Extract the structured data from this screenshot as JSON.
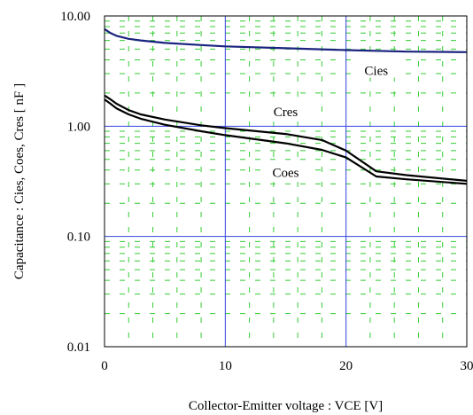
{
  "chart_data": {
    "type": "line",
    "xlabel": "Collector-Emitter voltage : VCE [V]",
    "ylabel": "Capacitance  :  Cies, Coes, Cres  [ nF ]",
    "xlim": [
      0,
      30
    ],
    "ylim": [
      0.01,
      10
    ],
    "y_scale": "log",
    "x_ticks": [
      0,
      10,
      20,
      30
    ],
    "x_tick_labels": [
      "0",
      "10",
      "20",
      "30"
    ],
    "y_ticks": [
      10,
      1,
      0.1,
      0.01
    ],
    "y_tick_labels": [
      "10.00",
      "1.00",
      "0.10",
      "0.01"
    ],
    "grid": true,
    "colors": {
      "major_grid": "#3344dd",
      "minor_grid": "#33cc33",
      "cies_line": "#1a237e",
      "other_lines": "#000000"
    },
    "annotations": [
      {
        "text": "Cies",
        "x": 22.5,
        "y": 3.2
      },
      {
        "text": "Cres",
        "x": 15,
        "y": 1.35
      },
      {
        "text": "Coes",
        "x": 15,
        "y": 0.38
      }
    ],
    "series": [
      {
        "name": "Cies",
        "x": [
          0,
          0.5,
          1,
          2,
          3,
          5,
          8,
          10,
          15,
          20,
          25,
          30
        ],
        "y": [
          7.6,
          7.0,
          6.6,
          6.2,
          6.0,
          5.7,
          5.45,
          5.3,
          5.1,
          4.9,
          4.75,
          4.7
        ]
      },
      {
        "name": "Cres",
        "x": [
          0,
          0.5,
          1,
          2,
          3,
          5,
          8,
          10,
          15,
          18,
          20,
          22.5,
          25,
          30
        ],
        "y": [
          1.9,
          1.75,
          1.6,
          1.4,
          1.28,
          1.15,
          1.02,
          0.96,
          0.85,
          0.75,
          0.6,
          0.39,
          0.36,
          0.32
        ]
      },
      {
        "name": "Coes",
        "x": [
          0,
          0.5,
          1,
          2,
          3,
          5,
          8,
          10,
          15,
          18,
          20,
          22.5,
          25,
          30
        ],
        "y": [
          1.75,
          1.6,
          1.45,
          1.28,
          1.17,
          1.03,
          0.9,
          0.83,
          0.7,
          0.61,
          0.52,
          0.35,
          0.33,
          0.3
        ]
      }
    ]
  }
}
